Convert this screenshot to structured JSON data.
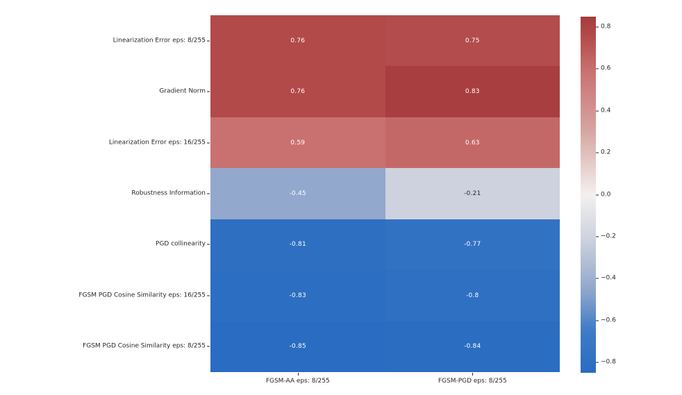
{
  "figure": {
    "background": "#ffffff",
    "text_color": "#262626"
  },
  "chart_data": {
    "type": "heatmap",
    "rows": [
      "Linearization Error eps: 8/255",
      "Gradient Norm",
      "Linearization Error eps: 16/255",
      "Robustness Information",
      "PGD collinearity",
      "FGSM PGD Cosine Similarity eps: 16/255",
      "FGSM PGD Cosine Similarity eps: 8/255"
    ],
    "columns": [
      "FGSM-AA eps: 8/255",
      "FGSM-PGD eps: 8/255"
    ],
    "values": [
      [
        0.76,
        0.75
      ],
      [
        0.76,
        0.83
      ],
      [
        0.59,
        0.63
      ],
      [
        -0.45,
        -0.21
      ],
      [
        -0.81,
        -0.77
      ],
      [
        -0.83,
        -0.8
      ],
      [
        -0.85,
        -0.84
      ]
    ],
    "annotations": [
      [
        "0.76",
        "0.75"
      ],
      [
        "0.76",
        "0.83"
      ],
      [
        "0.59",
        "0.63"
      ],
      [
        "-0.45",
        "-0.21"
      ],
      [
        "-0.81",
        "-0.77"
      ],
      [
        "-0.83",
        "-0.8"
      ],
      [
        "-0.85",
        "-0.84"
      ]
    ],
    "vmin": -0.85,
    "vmax": 0.85,
    "grid": false,
    "legend_position": "right-colorbar",
    "colorbar_ticks": [
      "0.8",
      "0.6",
      "0.4",
      "0.2",
      "0.0",
      "−0.2",
      "−0.4",
      "−0.6",
      "−0.8"
    ],
    "colorbar_tick_values": [
      0.8,
      0.6,
      0.4,
      0.2,
      0.0,
      -0.2,
      -0.4,
      -0.6,
      -0.8
    ],
    "colormap": {
      "name": "vlag-like-diverging",
      "anchors": [
        {
          "t": 0.0,
          "c": "#2a6cc1"
        },
        {
          "t": 0.12,
          "c": "#3e7cc6"
        },
        {
          "t": 0.235,
          "c": "#92a8cc"
        },
        {
          "t": 0.376,
          "c": "#cdd2de"
        },
        {
          "t": 0.5,
          "c": "#f3f0ef"
        },
        {
          "t": 0.68,
          "c": "#d6a5a0"
        },
        {
          "t": 0.847,
          "c": "#c97170"
        },
        {
          "t": 0.947,
          "c": "#b24a4a"
        },
        {
          "t": 1.0,
          "c": "#a53a3d"
        }
      ]
    },
    "annotation_text_colors": {
      "dark_cell": "#ffffff",
      "light_cell": "#262626"
    }
  }
}
